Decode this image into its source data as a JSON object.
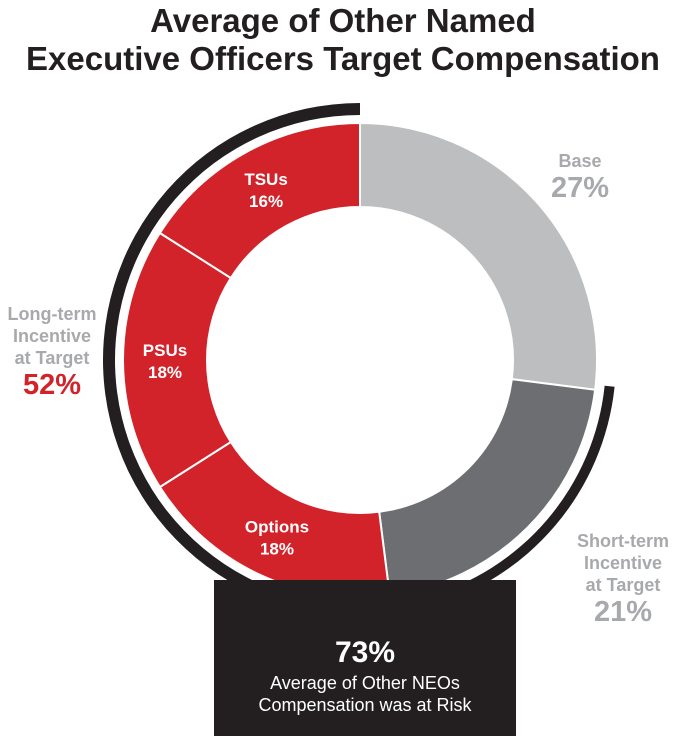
{
  "chart_data": {
    "type": "pie",
    "title_line1": "Average of Other Named",
    "title_line2": "Executive Officers Target Compensation",
    "slices": [
      {
        "name": "Base",
        "value": 27,
        "label": "27%",
        "color": "#bcbec0"
      },
      {
        "name": "Short-term Incentive at Target",
        "value": 21,
        "label": "21%",
        "color": "#6d6e71"
      },
      {
        "name": "Options",
        "value": 18,
        "label": "18%",
        "color": "#d2232a"
      },
      {
        "name": "PSUs",
        "value": 18,
        "label": "18%",
        "color": "#d2232a"
      },
      {
        "name": "TSUs",
        "value": 16,
        "label": "16%",
        "color": "#d2232a"
      }
    ],
    "groups": {
      "base": {
        "line1": "Base",
        "pct": "27%"
      },
      "short_term": {
        "line1": "Short-term",
        "line2": "Incentive",
        "line3": "at Target",
        "pct": "21%"
      },
      "long_term": {
        "line1": "Long-term",
        "line2": "Incentive",
        "line3": "at Target",
        "pct": "52%",
        "color": "#d2232a"
      }
    },
    "at_risk": {
      "pct": "73%",
      "line1": "Average of Other NEOs",
      "line2": "Compensation was at Risk"
    },
    "colors": {
      "dark": "#231f20",
      "light_gray": "#a7a9ac"
    }
  }
}
